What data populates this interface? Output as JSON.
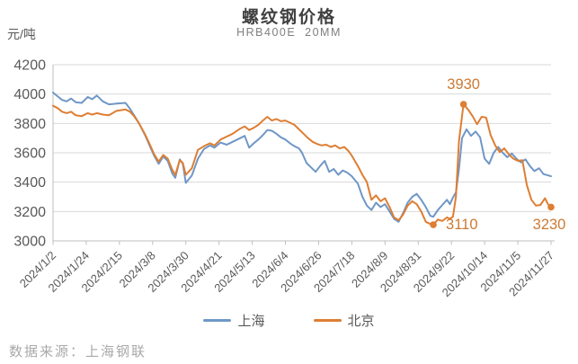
{
  "chart": {
    "style": {
      "background": "#ffffff",
      "title_color": "#404040",
      "subtitle_color": "#7f7f7f",
      "tick_label_color": "#595959",
      "gridline_color": "#d9d9d9",
      "axis_line_color": "#bfbfbf",
      "annotation_color": "#cc7a33",
      "source_color": "#a9a9a9"
    }
  },
  "footer": {
    "source": "数据来源：上海钢联"
  },
  "chart_data": {
    "type": "line",
    "title": "螺纹钢价格",
    "subtitle": "HRB400E  20MM",
    "ylabel": "元/吨",
    "xlabel": "",
    "ylim": [
      3000,
      4200
    ],
    "y_ticks": [
      4200,
      4000,
      3800,
      3600,
      3400,
      3200,
      3000
    ],
    "x_tick_labels": [
      "2024/1/2",
      "2024/1/24",
      "2024/2/15",
      "2024/3/8",
      "2024/3/30",
      "2024/4/21",
      "2024/5/13",
      "2024/6/4",
      "2024/6/26",
      "2024/7/18",
      "2024/8/9",
      "2024/8/31",
      "2024/9/22",
      "2024/10/14",
      "2024/11/5",
      "2024/11/27"
    ],
    "x_domain_days": [
      0,
      330
    ],
    "grid": true,
    "legend_position": "bottom",
    "series": [
      {
        "name": "上海",
        "id": "shanghai",
        "color": "#6f97c6",
        "points": [
          [
            0,
            4010
          ],
          [
            3,
            3985
          ],
          [
            6,
            3960
          ],
          [
            9,
            3950
          ],
          [
            12,
            3970
          ],
          [
            15,
            3945
          ],
          [
            19,
            3940
          ],
          [
            23,
            3980
          ],
          [
            26,
            3965
          ],
          [
            29,
            3990
          ],
          [
            33,
            3950
          ],
          [
            37,
            3930
          ],
          [
            42,
            3935
          ],
          [
            48,
            3940
          ],
          [
            51,
            3900
          ],
          [
            54,
            3850
          ],
          [
            57,
            3800
          ],
          [
            61,
            3720
          ],
          [
            64,
            3650
          ],
          [
            67,
            3580
          ],
          [
            70,
            3525
          ],
          [
            73,
            3575
          ],
          [
            76,
            3545
          ],
          [
            79,
            3460
          ],
          [
            81,
            3430
          ],
          [
            84,
            3555
          ],
          [
            86,
            3525
          ],
          [
            88,
            3395
          ],
          [
            92,
            3445
          ],
          [
            96,
            3560
          ],
          [
            100,
            3625
          ],
          [
            104,
            3650
          ],
          [
            107,
            3635
          ],
          [
            111,
            3670
          ],
          [
            115,
            3655
          ],
          [
            119,
            3675
          ],
          [
            124,
            3700
          ],
          [
            127,
            3715
          ],
          [
            130,
            3635
          ],
          [
            133,
            3665
          ],
          [
            136,
            3690
          ],
          [
            139,
            3720
          ],
          [
            142,
            3755
          ],
          [
            145,
            3750
          ],
          [
            148,
            3730
          ],
          [
            151,
            3705
          ],
          [
            154,
            3690
          ],
          [
            157,
            3665
          ],
          [
            160,
            3645
          ],
          [
            163,
            3630
          ],
          [
            165,
            3600
          ],
          [
            168,
            3530
          ],
          [
            171,
            3500
          ],
          [
            174,
            3470
          ],
          [
            177,
            3510
          ],
          [
            180,
            3545
          ],
          [
            183,
            3470
          ],
          [
            186,
            3490
          ],
          [
            189,
            3450
          ],
          [
            192,
            3480
          ],
          [
            195,
            3465
          ],
          [
            198,
            3440
          ],
          [
            202,
            3390
          ],
          [
            205,
            3300
          ],
          [
            208,
            3240
          ],
          [
            211,
            3210
          ],
          [
            214,
            3260
          ],
          [
            217,
            3230
          ],
          [
            220,
            3250
          ],
          [
            223,
            3200
          ],
          [
            226,
            3150
          ],
          [
            229,
            3130
          ],
          [
            232,
            3190
          ],
          [
            235,
            3260
          ],
          [
            238,
            3300
          ],
          [
            241,
            3320
          ],
          [
            244,
            3280
          ],
          [
            247,
            3230
          ],
          [
            250,
            3170
          ],
          [
            252,
            3165
          ],
          [
            255,
            3210
          ],
          [
            258,
            3245
          ],
          [
            261,
            3280
          ],
          [
            263,
            3250
          ],
          [
            265,
            3295
          ],
          [
            267,
            3330
          ],
          [
            269,
            3490
          ],
          [
            271,
            3700
          ],
          [
            274,
            3760
          ],
          [
            277,
            3715
          ],
          [
            280,
            3745
          ],
          [
            283,
            3705
          ],
          [
            286,
            3560
          ],
          [
            289,
            3525
          ],
          [
            292,
            3600
          ],
          [
            295,
            3640
          ],
          [
            298,
            3600
          ],
          [
            301,
            3570
          ],
          [
            304,
            3595
          ],
          [
            307,
            3560
          ],
          [
            310,
            3535
          ],
          [
            313,
            3555
          ],
          [
            316,
            3510
          ],
          [
            319,
            3475
          ],
          [
            322,
            3495
          ],
          [
            325,
            3455
          ],
          [
            330,
            3440
          ]
        ],
        "markers": []
      },
      {
        "name": "北京",
        "id": "beijing",
        "color": "#de7e33",
        "points": [
          [
            0,
            3920
          ],
          [
            3,
            3905
          ],
          [
            6,
            3880
          ],
          [
            9,
            3870
          ],
          [
            12,
            3880
          ],
          [
            15,
            3855
          ],
          [
            19,
            3850
          ],
          [
            23,
            3870
          ],
          [
            26,
            3860
          ],
          [
            29,
            3870
          ],
          [
            33,
            3860
          ],
          [
            37,
            3855
          ],
          [
            42,
            3885
          ],
          [
            48,
            3895
          ],
          [
            51,
            3880
          ],
          [
            54,
            3845
          ],
          [
            57,
            3800
          ],
          [
            61,
            3725
          ],
          [
            64,
            3660
          ],
          [
            67,
            3590
          ],
          [
            70,
            3540
          ],
          [
            73,
            3585
          ],
          [
            76,
            3560
          ],
          [
            79,
            3485
          ],
          [
            81,
            3450
          ],
          [
            84,
            3550
          ],
          [
            86,
            3530
          ],
          [
            88,
            3450
          ],
          [
            92,
            3495
          ],
          [
            96,
            3620
          ],
          [
            100,
            3645
          ],
          [
            104,
            3665
          ],
          [
            107,
            3650
          ],
          [
            111,
            3690
          ],
          [
            115,
            3710
          ],
          [
            119,
            3730
          ],
          [
            124,
            3765
          ],
          [
            127,
            3780
          ],
          [
            130,
            3755
          ],
          [
            133,
            3770
          ],
          [
            136,
            3790
          ],
          [
            139,
            3820
          ],
          [
            142,
            3845
          ],
          [
            145,
            3820
          ],
          [
            148,
            3830
          ],
          [
            151,
            3815
          ],
          [
            154,
            3820
          ],
          [
            157,
            3805
          ],
          [
            160,
            3790
          ],
          [
            163,
            3760
          ],
          [
            166,
            3730
          ],
          [
            169,
            3700
          ],
          [
            172,
            3675
          ],
          [
            175,
            3660
          ],
          [
            178,
            3650
          ],
          [
            181,
            3655
          ],
          [
            184,
            3640
          ],
          [
            187,
            3650
          ],
          [
            190,
            3630
          ],
          [
            193,
            3640
          ],
          [
            196,
            3610
          ],
          [
            198,
            3580
          ],
          [
            202,
            3510
          ],
          [
            205,
            3450
          ],
          [
            208,
            3400
          ],
          [
            211,
            3280
          ],
          [
            214,
            3310
          ],
          [
            217,
            3270
          ],
          [
            220,
            3290
          ],
          [
            223,
            3230
          ],
          [
            226,
            3160
          ],
          [
            229,
            3140
          ],
          [
            232,
            3180
          ],
          [
            235,
            3240
          ],
          [
            238,
            3270
          ],
          [
            241,
            3250
          ],
          [
            244,
            3200
          ],
          [
            247,
            3130
          ],
          [
            250,
            3115
          ],
          [
            252,
            3110
          ],
          [
            255,
            3145
          ],
          [
            258,
            3135
          ],
          [
            261,
            3160
          ],
          [
            263,
            3150
          ],
          [
            265,
            3165
          ],
          [
            267,
            3300
          ],
          [
            269,
            3680
          ],
          [
            272,
            3930
          ],
          [
            275,
            3895
          ],
          [
            278,
            3850
          ],
          [
            281,
            3795
          ],
          [
            284,
            3845
          ],
          [
            287,
            3840
          ],
          [
            290,
            3720
          ],
          [
            293,
            3650
          ],
          [
            296,
            3605
          ],
          [
            299,
            3630
          ],
          [
            302,
            3590
          ],
          [
            305,
            3560
          ],
          [
            308,
            3545
          ],
          [
            311,
            3550
          ],
          [
            314,
            3380
          ],
          [
            317,
            3280
          ],
          [
            320,
            3240
          ],
          [
            323,
            3245
          ],
          [
            326,
            3290
          ],
          [
            328,
            3250
          ],
          [
            330,
            3230
          ]
        ],
        "markers": [
          [
            252,
            3110
          ],
          [
            272,
            3930
          ],
          [
            330,
            3230
          ]
        ]
      }
    ],
    "annotations": [
      {
        "text": "3930",
        "series": "北京",
        "day": 272,
        "value": 3930,
        "placement": "above"
      },
      {
        "text": "3110",
        "series": "北京",
        "day": 252,
        "value": 3110,
        "placement": "right"
      },
      {
        "text": "3230",
        "series": "北京",
        "day": 330,
        "value": 3230,
        "placement": "below"
      }
    ]
  }
}
